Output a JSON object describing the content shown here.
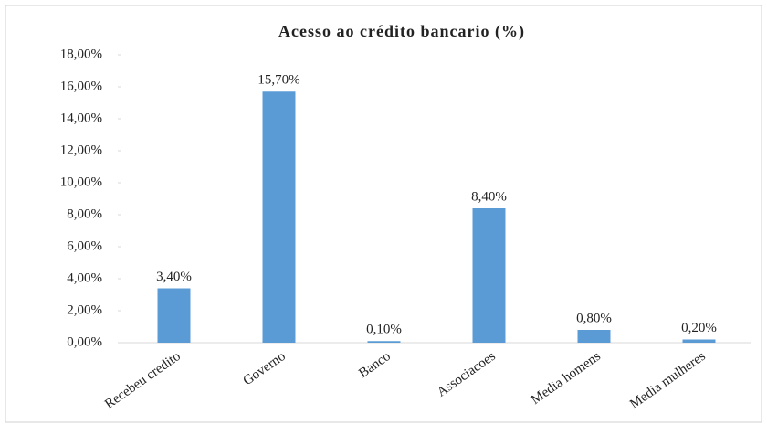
{
  "chart_data": {
    "type": "bar",
    "title": "Acesso ao crédito bancario (%)",
    "categories": [
      "Recebeu credito",
      "Governo",
      "Banco",
      "Associacoes",
      "Media homens",
      "Media mulheres"
    ],
    "values": [
      3.4,
      15.7,
      0.1,
      8.4,
      0.8,
      0.2
    ],
    "value_labels": [
      "3,40%",
      "15,70%",
      "0,10%",
      "8,40%",
      "0,80%",
      "0,20%"
    ],
    "color": "#5b9bd5",
    "ylim": [
      0,
      18
    ],
    "yticks": [
      {
        "value": 0,
        "label": "0,00%"
      },
      {
        "value": 2,
        "label": "2,00%"
      },
      {
        "value": 4,
        "label": "4,00%"
      },
      {
        "value": 6,
        "label": "6,00%"
      },
      {
        "value": 8,
        "label": "8,00%"
      },
      {
        "value": 10,
        "label": "10,00%"
      },
      {
        "value": 12,
        "label": "12,00%"
      },
      {
        "value": 14,
        "label": "14,00%"
      },
      {
        "value": 16,
        "label": "16,00%"
      },
      {
        "value": 18,
        "label": "18,00%"
      }
    ]
  }
}
